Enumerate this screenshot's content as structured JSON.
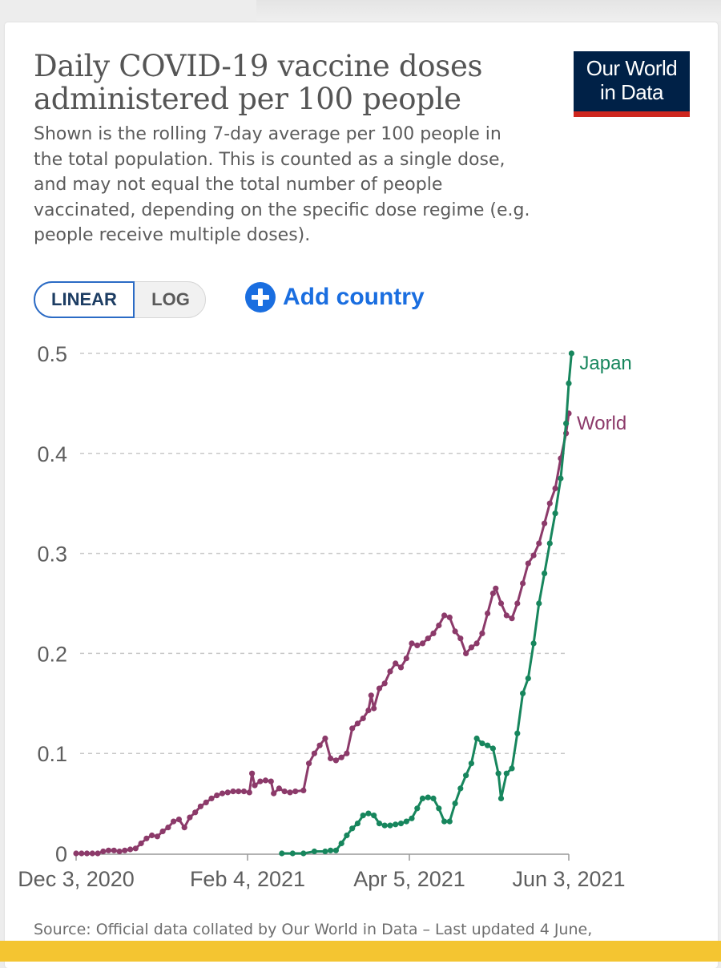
{
  "title": "Daily COVID-19 vaccine doses administered per 100 people",
  "subtitle": "Shown is the rolling 7-day average per 100 people in the total population. This is counted as a single dose, and may not equal the total number of people vaccinated, depending on the specific dose regime (e.g. people receive multiple doses).",
  "logo": {
    "line1": "Our World",
    "line2": "in Data"
  },
  "controls": {
    "scale_linear": "LINEAR",
    "scale_log": "LOG",
    "add_country": "Add country"
  },
  "source": "Source: Official data collated by Our World in Data – Last updated 4 June,",
  "colors": {
    "japan": "#17865d",
    "world": "#8c3a6a",
    "grid": "#c8c8c8",
    "logo_background": "#002147",
    "logo_bar": "#ce261e",
    "accent": "#1a6ee0",
    "footer_bar": "#f4c531"
  },
  "icons": {
    "add_country": "plus-circle-icon"
  },
  "chart_data": {
    "type": "line",
    "title": "Daily COVID-19 vaccine doses administered per 100 people",
    "x_start_date": "2020-12-03",
    "x_end_date": "2021-06-03",
    "x_ticks": [
      "Dec 3, 2020",
      "Feb 4, 2021",
      "Apr 5, 2021",
      "Jun 3, 2021"
    ],
    "y_ticks": [
      "0",
      "0.1",
      "0.2",
      "0.3",
      "0.4",
      "0.5"
    ],
    "ylim": [
      0,
      0.5
    ],
    "grid": "horizontal dashed",
    "legend": "labels at line ends",
    "series": [
      {
        "name": "World",
        "points": [
          [
            "2020-12-03",
            0
          ],
          [
            "2020-12-05",
            0
          ],
          [
            "2020-12-07",
            0
          ],
          [
            "2020-12-09",
            0
          ],
          [
            "2020-12-11",
            0
          ],
          [
            "2020-12-13",
            0.002
          ],
          [
            "2020-12-15",
            0.003
          ],
          [
            "2020-12-17",
            0.003
          ],
          [
            "2020-12-19",
            0.002
          ],
          [
            "2020-12-21",
            0.003
          ],
          [
            "2020-12-23",
            0.004
          ],
          [
            "2020-12-25",
            0.005
          ],
          [
            "2020-12-27",
            0.01
          ],
          [
            "2020-12-29",
            0.015
          ],
          [
            "2020-12-31",
            0.018
          ],
          [
            "2021-01-02",
            0.017
          ],
          [
            "2021-01-04",
            0.022
          ],
          [
            "2021-01-06",
            0.026
          ],
          [
            "2021-01-08",
            0.032
          ],
          [
            "2021-01-10",
            0.034
          ],
          [
            "2021-01-12",
            0.026
          ],
          [
            "2021-01-14",
            0.036
          ],
          [
            "2021-01-16",
            0.041
          ],
          [
            "2021-01-18",
            0.047
          ],
          [
            "2021-01-20",
            0.051
          ],
          [
            "2021-01-22",
            0.055
          ],
          [
            "2021-01-24",
            0.058
          ],
          [
            "2021-01-26",
            0.06
          ],
          [
            "2021-01-28",
            0.061
          ],
          [
            "2021-01-30",
            0.062
          ],
          [
            "2021-02-01",
            0.062
          ],
          [
            "2021-02-03",
            0.062
          ],
          [
            "2021-02-05",
            0.061
          ],
          [
            "2021-02-06",
            0.08
          ],
          [
            "2021-02-07",
            0.068
          ],
          [
            "2021-02-09",
            0.072
          ],
          [
            "2021-02-11",
            0.073
          ],
          [
            "2021-02-13",
            0.072
          ],
          [
            "2021-02-14",
            0.06
          ],
          [
            "2021-02-16",
            0.065
          ],
          [
            "2021-02-18",
            0.062
          ],
          [
            "2021-02-20",
            0.061
          ],
          [
            "2021-02-22",
            0.062
          ],
          [
            "2021-02-25",
            0.063
          ],
          [
            "2021-02-27",
            0.09
          ],
          [
            "2021-03-01",
            0.1
          ],
          [
            "2021-03-03",
            0.108
          ],
          [
            "2021-03-05",
            0.115
          ],
          [
            "2021-03-07",
            0.095
          ],
          [
            "2021-03-09",
            0.093
          ],
          [
            "2021-03-11",
            0.096
          ],
          [
            "2021-03-13",
            0.1
          ],
          [
            "2021-03-15",
            0.125
          ],
          [
            "2021-03-17",
            0.13
          ],
          [
            "2021-03-19",
            0.135
          ],
          [
            "2021-03-21",
            0.143
          ],
          [
            "2021-03-22",
            0.158
          ],
          [
            "2021-03-23",
            0.145
          ],
          [
            "2021-03-25",
            0.165
          ],
          [
            "2021-03-27",
            0.17
          ],
          [
            "2021-03-29",
            0.182
          ],
          [
            "2021-03-31",
            0.19
          ],
          [
            "2021-04-02",
            0.186
          ],
          [
            "2021-04-04",
            0.195
          ],
          [
            "2021-04-06",
            0.21
          ],
          [
            "2021-04-08",
            0.208
          ],
          [
            "2021-04-10",
            0.21
          ],
          [
            "2021-04-12",
            0.215
          ],
          [
            "2021-04-14",
            0.22
          ],
          [
            "2021-04-16",
            0.228
          ],
          [
            "2021-04-18",
            0.238
          ],
          [
            "2021-04-20",
            0.236
          ],
          [
            "2021-04-22",
            0.222
          ],
          [
            "2021-04-24",
            0.215
          ],
          [
            "2021-04-26",
            0.2
          ],
          [
            "2021-04-28",
            0.206
          ],
          [
            "2021-04-30",
            0.21
          ],
          [
            "2021-05-02",
            0.22
          ],
          [
            "2021-05-04",
            0.24
          ],
          [
            "2021-05-06",
            0.26
          ],
          [
            "2021-05-07",
            0.265
          ],
          [
            "2021-05-09",
            0.25
          ],
          [
            "2021-05-11",
            0.238
          ],
          [
            "2021-05-13",
            0.235
          ],
          [
            "2021-05-15",
            0.25
          ],
          [
            "2021-05-17",
            0.27
          ],
          [
            "2021-05-19",
            0.29
          ],
          [
            "2021-05-21",
            0.298
          ],
          [
            "2021-05-23",
            0.31
          ],
          [
            "2021-05-25",
            0.33
          ],
          [
            "2021-05-27",
            0.35
          ],
          [
            "2021-05-29",
            0.365
          ],
          [
            "2021-05-31",
            0.395
          ],
          [
            "2021-06-02",
            0.42
          ],
          [
            "2021-06-03",
            0.44
          ]
        ]
      },
      {
        "name": "Japan",
        "points": [
          [
            "2021-02-17",
            0
          ],
          [
            "2021-02-21",
            0
          ],
          [
            "2021-02-25",
            0
          ],
          [
            "2021-03-01",
            0.002
          ],
          [
            "2021-03-05",
            0.002
          ],
          [
            "2021-03-07",
            0.003
          ],
          [
            "2021-03-09",
            0.003
          ],
          [
            "2021-03-11",
            0.01
          ],
          [
            "2021-03-13",
            0.018
          ],
          [
            "2021-03-15",
            0.025
          ],
          [
            "2021-03-17",
            0.03
          ],
          [
            "2021-03-19",
            0.038
          ],
          [
            "2021-03-21",
            0.04
          ],
          [
            "2021-03-23",
            0.038
          ],
          [
            "2021-03-25",
            0.03
          ],
          [
            "2021-03-27",
            0.028
          ],
          [
            "2021-03-29",
            0.028
          ],
          [
            "2021-03-31",
            0.029
          ],
          [
            "2021-04-02",
            0.03
          ],
          [
            "2021-04-04",
            0.032
          ],
          [
            "2021-04-06",
            0.035
          ],
          [
            "2021-04-08",
            0.045
          ],
          [
            "2021-04-10",
            0.055
          ],
          [
            "2021-04-12",
            0.056
          ],
          [
            "2021-04-14",
            0.055
          ],
          [
            "2021-04-16",
            0.045
          ],
          [
            "2021-04-18",
            0.032
          ],
          [
            "2021-04-20",
            0.032
          ],
          [
            "2021-04-22",
            0.05
          ],
          [
            "2021-04-24",
            0.065
          ],
          [
            "2021-04-26",
            0.078
          ],
          [
            "2021-04-28",
            0.09
          ],
          [
            "2021-04-30",
            0.115
          ],
          [
            "2021-05-02",
            0.11
          ],
          [
            "2021-05-04",
            0.108
          ],
          [
            "2021-05-06",
            0.105
          ],
          [
            "2021-05-08",
            0.08
          ],
          [
            "2021-05-09",
            0.055
          ],
          [
            "2021-05-11",
            0.08
          ],
          [
            "2021-05-13",
            0.085
          ],
          [
            "2021-05-15",
            0.12
          ],
          [
            "2021-05-17",
            0.16
          ],
          [
            "2021-05-19",
            0.175
          ],
          [
            "2021-05-21",
            0.21
          ],
          [
            "2021-05-23",
            0.25
          ],
          [
            "2021-05-25",
            0.28
          ],
          [
            "2021-05-27",
            0.31
          ],
          [
            "2021-05-29",
            0.34
          ],
          [
            "2021-05-31",
            0.375
          ],
          [
            "2021-06-02",
            0.43
          ],
          [
            "2021-06-03",
            0.47
          ],
          [
            "2021-06-04",
            0.5
          ]
        ]
      }
    ]
  }
}
